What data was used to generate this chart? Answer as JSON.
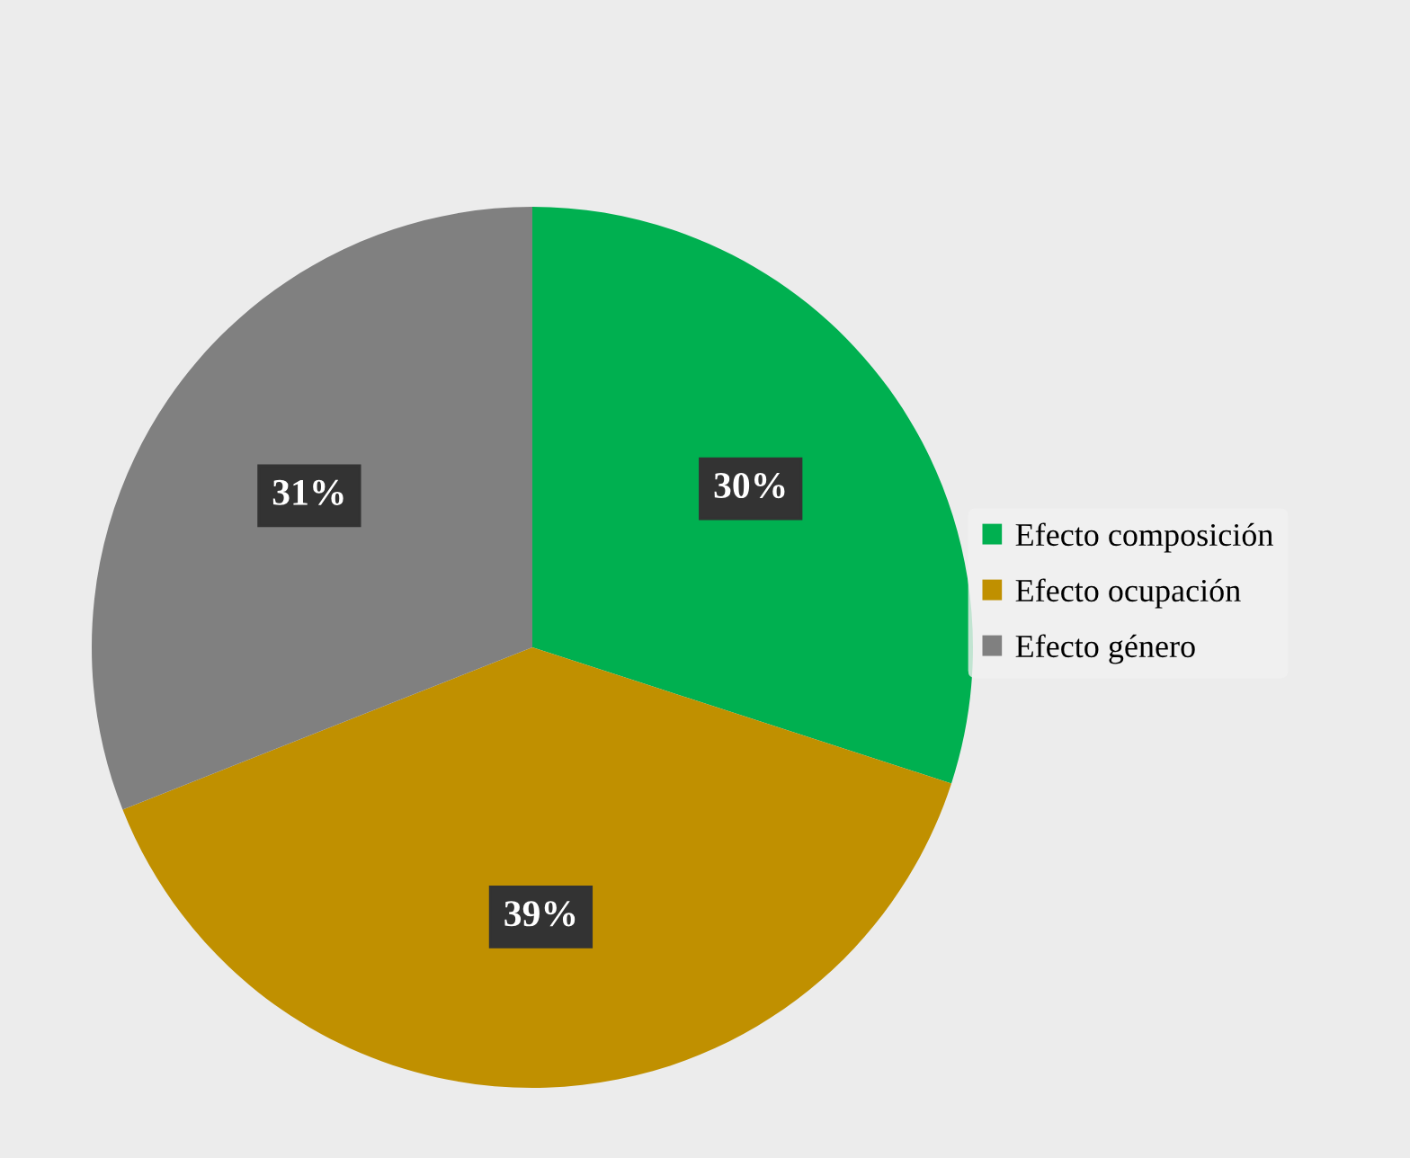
{
  "chart_data": {
    "type": "pie",
    "categories": [
      "Efecto composición",
      "Efecto ocupación",
      "Efecto género"
    ],
    "values": [
      30,
      39,
      31
    ],
    "colors": [
      "#00b050",
      "#c09000",
      "#808080"
    ],
    "value_labels": [
      "30%",
      "39%",
      "31%"
    ],
    "legend": "right"
  }
}
